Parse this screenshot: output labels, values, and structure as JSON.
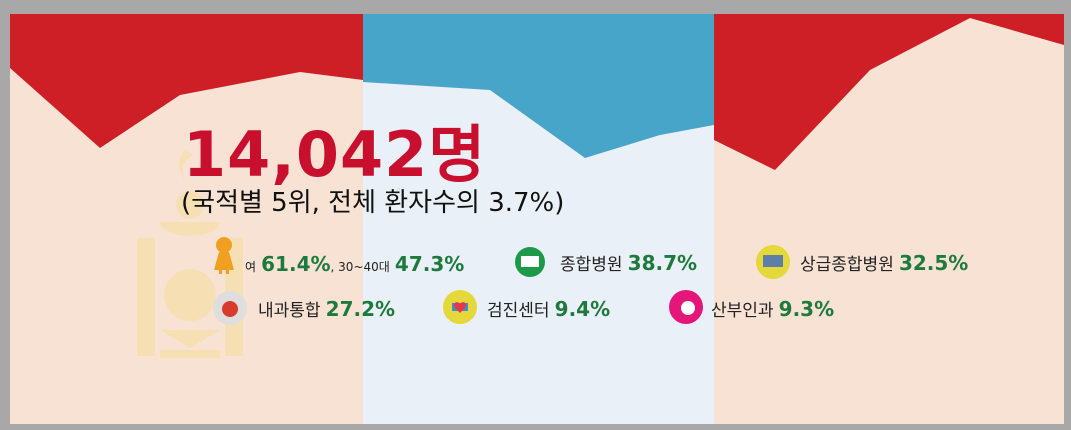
{
  "headline": "14,042명",
  "subtitle": "(국적별 5위, 전체 환자수의 3.7%)",
  "stats": [
    {
      "label": "여",
      "value": "61.4%",
      "label2": "30~40대",
      "value2": "47.3%"
    },
    {
      "label": "종합병원",
      "value": "38.7%"
    },
    {
      "label": "상급종합병원",
      "value": "32.5%"
    },
    {
      "label": "내과통합",
      "value": "27.2%"
    },
    {
      "label": "검진센터",
      "value": "9.4%"
    },
    {
      "label": "산부인과",
      "value": "9.3%"
    }
  ]
}
